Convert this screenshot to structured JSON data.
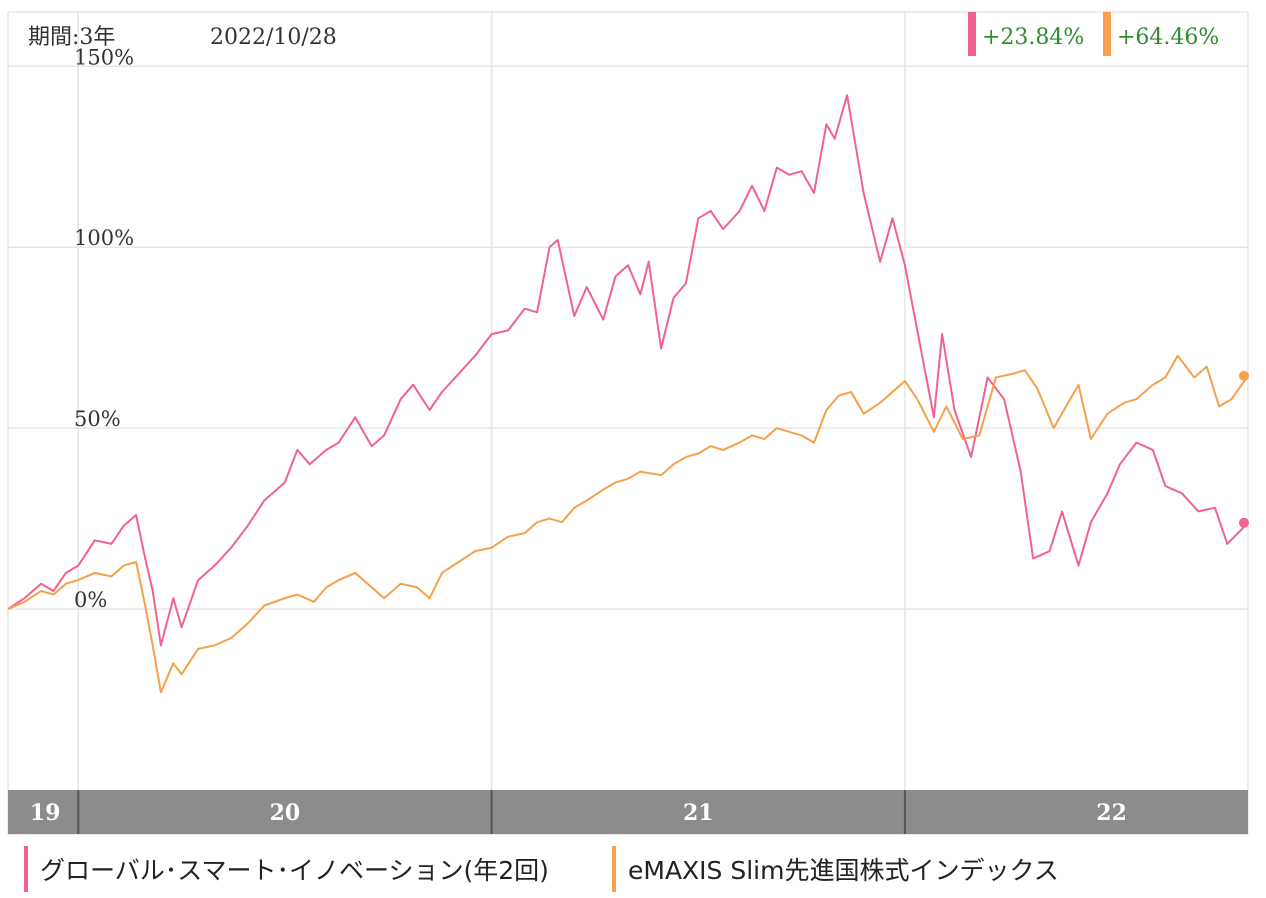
{
  "header": {
    "period_label": "期間:3年",
    "date_label": "2022/10/28"
  },
  "returns": [
    {
      "text": "+23.84%",
      "color": "#f06292"
    },
    {
      "text": "+64.46%",
      "color": "#f7a04b"
    }
  ],
  "legend": [
    {
      "label": "グローバル･スマート･イノベーション(年2回)",
      "color": "#f06292"
    },
    {
      "label": "eMAXIS Slim先進国株式インデックス",
      "color": "#f7a04b"
    }
  ],
  "colors": {
    "series_1": "#f06292",
    "series_2": "#f7a04b",
    "return_text": "#2e8b2e",
    "grid": "#e6e6e6",
    "axis_bar": "#8c8c8c"
  },
  "chart_data": {
    "type": "line",
    "title": "",
    "xlabel": "",
    "ylabel": "",
    "ylim": [
      -50,
      165
    ],
    "yticks": [
      0,
      50,
      100,
      150
    ],
    "ytick_labels": [
      "0%",
      "50%",
      "100%",
      "150%"
    ],
    "x_unit": "year",
    "x_range": [
      2019.83,
      2022.83
    ],
    "x_tick_labels": [
      "19",
      "20",
      "21",
      "22"
    ],
    "x_tick_label_positions": [
      2019.92,
      2020.5,
      2021.5,
      2022.5
    ],
    "x_year_boundaries": [
      2020,
      2021,
      2022
    ],
    "grid": true,
    "legend_position": "bottom",
    "series": [
      {
        "name": "グローバル･スマート･イノベーション(年2回)",
        "color": "#f06292",
        "points": [
          [
            2019.83,
            0
          ],
          [
            2019.87,
            3
          ],
          [
            2019.91,
            7
          ],
          [
            2019.94,
            5
          ],
          [
            2019.97,
            10
          ],
          [
            2020.0,
            12
          ],
          [
            2020.04,
            19
          ],
          [
            2020.08,
            18
          ],
          [
            2020.11,
            23
          ],
          [
            2020.14,
            26
          ],
          [
            2020.16,
            15
          ],
          [
            2020.18,
            5
          ],
          [
            2020.2,
            -10
          ],
          [
            2020.23,
            3
          ],
          [
            2020.25,
            -5
          ],
          [
            2020.29,
            8
          ],
          [
            2020.33,
            12
          ],
          [
            2020.37,
            17
          ],
          [
            2020.41,
            23
          ],
          [
            2020.45,
            30
          ],
          [
            2020.5,
            35
          ],
          [
            2020.53,
            44
          ],
          [
            2020.56,
            40
          ],
          [
            2020.6,
            44
          ],
          [
            2020.63,
            46
          ],
          [
            2020.67,
            53
          ],
          [
            2020.71,
            45
          ],
          [
            2020.74,
            48
          ],
          [
            2020.78,
            58
          ],
          [
            2020.81,
            62
          ],
          [
            2020.85,
            55
          ],
          [
            2020.88,
            60
          ],
          [
            2020.92,
            65
          ],
          [
            2020.96,
            70
          ],
          [
            2021.0,
            76
          ],
          [
            2021.04,
            77
          ],
          [
            2021.08,
            83
          ],
          [
            2021.11,
            82
          ],
          [
            2021.14,
            100
          ],
          [
            2021.16,
            102
          ],
          [
            2021.2,
            81
          ],
          [
            2021.23,
            89
          ],
          [
            2021.27,
            80
          ],
          [
            2021.3,
            92
          ],
          [
            2021.33,
            95
          ],
          [
            2021.36,
            87
          ],
          [
            2021.38,
            96
          ],
          [
            2021.41,
            72
          ],
          [
            2021.44,
            86
          ],
          [
            2021.47,
            90
          ],
          [
            2021.5,
            108
          ],
          [
            2021.53,
            110
          ],
          [
            2021.56,
            105
          ],
          [
            2021.6,
            110
          ],
          [
            2021.63,
            117
          ],
          [
            2021.66,
            110
          ],
          [
            2021.69,
            122
          ],
          [
            2021.72,
            120
          ],
          [
            2021.75,
            121
          ],
          [
            2021.78,
            115
          ],
          [
            2021.81,
            134
          ],
          [
            2021.83,
            130
          ],
          [
            2021.86,
            142
          ],
          [
            2021.9,
            115
          ],
          [
            2021.94,
            96
          ],
          [
            2021.97,
            108
          ],
          [
            2022.0,
            95
          ],
          [
            2022.03,
            77
          ],
          [
            2022.07,
            53
          ],
          [
            2022.09,
            76
          ],
          [
            2022.12,
            55
          ],
          [
            2022.16,
            42
          ],
          [
            2022.2,
            64
          ],
          [
            2022.24,
            58
          ],
          [
            2022.28,
            38
          ],
          [
            2022.31,
            14
          ],
          [
            2022.35,
            16
          ],
          [
            2022.38,
            27
          ],
          [
            2022.42,
            12
          ],
          [
            2022.45,
            24
          ],
          [
            2022.49,
            32
          ],
          [
            2022.52,
            40
          ],
          [
            2022.56,
            46
          ],
          [
            2022.6,
            44
          ],
          [
            2022.63,
            34
          ],
          [
            2022.67,
            32
          ],
          [
            2022.71,
            27
          ],
          [
            2022.75,
            28
          ],
          [
            2022.78,
            18
          ],
          [
            2022.83,
            23.84
          ]
        ]
      },
      {
        "name": "eMAXIS Slim先進国株式インデックス",
        "color": "#f7a04b",
        "points": [
          [
            2019.83,
            0
          ],
          [
            2019.87,
            2
          ],
          [
            2019.91,
            5
          ],
          [
            2019.94,
            4
          ],
          [
            2019.97,
            7
          ],
          [
            2020.0,
            8
          ],
          [
            2020.04,
            10
          ],
          [
            2020.08,
            9
          ],
          [
            2020.11,
            12
          ],
          [
            2020.14,
            13
          ],
          [
            2020.16,
            2
          ],
          [
            2020.18,
            -10
          ],
          [
            2020.2,
            -23
          ],
          [
            2020.23,
            -15
          ],
          [
            2020.25,
            -18
          ],
          [
            2020.29,
            -11
          ],
          [
            2020.33,
            -10
          ],
          [
            2020.37,
            -8
          ],
          [
            2020.41,
            -4
          ],
          [
            2020.45,
            1
          ],
          [
            2020.5,
            3
          ],
          [
            2020.53,
            4
          ],
          [
            2020.57,
            2
          ],
          [
            2020.6,
            6
          ],
          [
            2020.63,
            8
          ],
          [
            2020.67,
            10
          ],
          [
            2020.71,
            6
          ],
          [
            2020.74,
            3
          ],
          [
            2020.78,
            7
          ],
          [
            2020.82,
            6
          ],
          [
            2020.85,
            3
          ],
          [
            2020.88,
            10
          ],
          [
            2020.92,
            13
          ],
          [
            2020.96,
            16
          ],
          [
            2021.0,
            17
          ],
          [
            2021.04,
            20
          ],
          [
            2021.08,
            21
          ],
          [
            2021.11,
            24
          ],
          [
            2021.14,
            25
          ],
          [
            2021.17,
            24
          ],
          [
            2021.2,
            28
          ],
          [
            2021.23,
            30
          ],
          [
            2021.27,
            33
          ],
          [
            2021.3,
            35
          ],
          [
            2021.33,
            36
          ],
          [
            2021.36,
            38
          ],
          [
            2021.41,
            37
          ],
          [
            2021.44,
            40
          ],
          [
            2021.47,
            42
          ],
          [
            2021.5,
            43
          ],
          [
            2021.53,
            45
          ],
          [
            2021.56,
            44
          ],
          [
            2021.6,
            46
          ],
          [
            2021.63,
            48
          ],
          [
            2021.66,
            47
          ],
          [
            2021.69,
            50
          ],
          [
            2021.72,
            49
          ],
          [
            2021.75,
            48
          ],
          [
            2021.78,
            46
          ],
          [
            2021.81,
            55
          ],
          [
            2021.84,
            59
          ],
          [
            2021.87,
            60
          ],
          [
            2021.9,
            54
          ],
          [
            2021.94,
            57
          ],
          [
            2022.0,
            63
          ],
          [
            2022.03,
            58
          ],
          [
            2022.07,
            49
          ],
          [
            2022.1,
            56
          ],
          [
            2022.14,
            47
          ],
          [
            2022.18,
            48
          ],
          [
            2022.22,
            64
          ],
          [
            2022.26,
            65
          ],
          [
            2022.29,
            66
          ],
          [
            2022.32,
            61
          ],
          [
            2022.36,
            50
          ],
          [
            2022.39,
            56
          ],
          [
            2022.42,
            62
          ],
          [
            2022.45,
            47
          ],
          [
            2022.49,
            54
          ],
          [
            2022.53,
            57
          ],
          [
            2022.56,
            58
          ],
          [
            2022.6,
            62
          ],
          [
            2022.63,
            64
          ],
          [
            2022.66,
            70
          ],
          [
            2022.7,
            64
          ],
          [
            2022.73,
            67
          ],
          [
            2022.76,
            56
          ],
          [
            2022.79,
            58
          ],
          [
            2022.83,
            64.46
          ]
        ]
      }
    ]
  }
}
